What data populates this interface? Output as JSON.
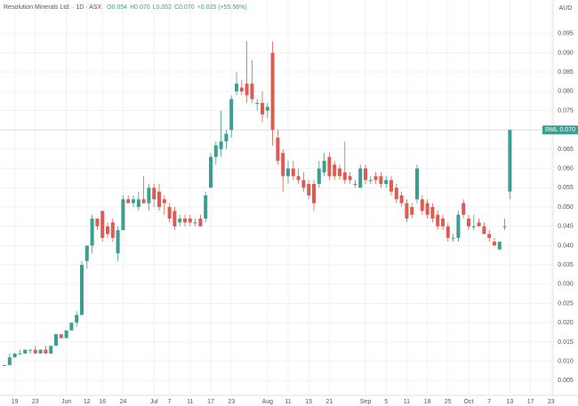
{
  "chart_data": {
    "type": "candlestick",
    "title": "Resolution Minerals Ltd. · 1D · ASX",
    "legend_values": [
      "O0.054",
      "H0.070",
      "L0.052",
      "C0.070",
      "+0.025 (+55.56%)"
    ],
    "currency": "AUD",
    "price_tag": {
      "name": "RML",
      "value": 0.07,
      "label": "0.070"
    },
    "up_color": "#3b9e8f",
    "down_color": "#df5b52",
    "grid": true,
    "ylim": [
      0,
      0.1037
    ],
    "yticks": [
      0.005,
      {
        "value": 0.01,
        "label": "0.010"
      },
      0.015,
      {
        "value": 0.02,
        "label": "0.020"
      },
      0.025,
      {
        "value": 0.03,
        "label": "0.030"
      },
      0.035,
      {
        "value": 0.04,
        "label": "0.040"
      },
      0.045,
      {
        "value": 0.05,
        "label": "0.050"
      },
      0.055,
      {
        "value": 0.06,
        "label": "0.060"
      },
      0.065,
      {
        "value": 0.07,
        "label": "0.070"
      },
      0.075,
      {
        "value": 0.08,
        "label": "0.080"
      },
      0.085,
      {
        "value": 0.09,
        "label": "0.090"
      },
      0.095
    ],
    "categories": [
      null,
      null,
      "19",
      null,
      null,
      null,
      "23",
      null,
      null,
      null,
      null,
      null,
      "Jun",
      null,
      null,
      null,
      "12",
      null,
      null,
      "16",
      null,
      null,
      null,
      "24",
      null,
      null,
      null,
      null,
      null,
      "Jul",
      null,
      null,
      "7",
      null,
      null,
      null,
      "11",
      null,
      null,
      null,
      "17",
      null,
      null,
      null,
      "23",
      null,
      null,
      null,
      null,
      null,
      null,
      "Aug",
      null,
      null,
      null,
      "11",
      null,
      null,
      null,
      "15",
      null,
      null,
      null,
      "21",
      null,
      null,
      null,
      null,
      null,
      null,
      "Sep",
      null,
      null,
      null,
      "5",
      null,
      null,
      null,
      "11",
      null,
      null,
      null,
      "18",
      null,
      null,
      null,
      "25",
      null,
      null,
      null,
      "Oct",
      null,
      null,
      null,
      "7",
      null,
      null,
      null,
      "13",
      null,
      null,
      null,
      "17",
      null,
      null,
      null,
      "23"
    ],
    "open": [
      0.009,
      0.009,
      0.011,
      0.012,
      0.012,
      0.013,
      0.013,
      0.012,
      0.013,
      0.012,
      0.014,
      0.017,
      0.016,
      0.018,
      0.02,
      0.022,
      0.036,
      0.04,
      0.047,
      0.049,
      0.045,
      0.046,
      0.038,
      0.044,
      0.052,
      0.051,
      0.05,
      0.052,
      0.051,
      0.055,
      0.054,
      0.052,
      0.05,
      0.049,
      0.046,
      0.047,
      0.047,
      0.046,
      0.047,
      0.047,
      0.055,
      0.063,
      0.065,
      0.067,
      0.07,
      0.08,
      0.081,
      0.082,
      0.082,
      0.077,
      0.077,
      0.075,
      0.09,
      0.068,
      0.064,
      0.058,
      0.06,
      0.058,
      0.057,
      0.056,
      0.056,
      0.056,
      0.059,
      0.063,
      0.061,
      0.06,
      0.059,
      0.058,
      0.056,
      0.055,
      0.06,
      0.057,
      0.058,
      0.058,
      0.056,
      0.057,
      0.055,
      0.053,
      0.051,
      0.05,
      0.052,
      0.052,
      0.051,
      0.05,
      0.048,
      0.047,
      0.045,
      0.042,
      0.042,
      0.051,
      0.047,
      0.045,
      0.046,
      0.045,
      0.043,
      0.041,
      0.039,
      0.045,
      0.054,
      null,
      null,
      null,
      null,
      null,
      null,
      null,
      null
    ],
    "high": [
      0.009,
      0.012,
      0.012,
      0.013,
      0.013,
      0.013,
      0.014,
      0.013,
      0.014,
      0.014,
      0.017,
      0.017,
      0.018,
      0.02,
      0.023,
      0.036,
      0.04,
      0.048,
      0.047,
      0.049,
      0.046,
      0.047,
      0.045,
      0.053,
      0.053,
      0.053,
      0.054,
      0.058,
      0.056,
      0.056,
      0.056,
      0.053,
      0.051,
      0.05,
      0.048,
      0.048,
      0.048,
      0.047,
      0.048,
      0.054,
      0.064,
      0.067,
      0.075,
      0.07,
      0.079,
      0.085,
      0.083,
      0.093,
      0.088,
      0.078,
      0.08,
      0.077,
      0.093,
      0.07,
      0.065,
      0.062,
      0.062,
      0.06,
      0.059,
      0.057,
      0.057,
      0.062,
      0.064,
      0.064,
      0.062,
      0.061,
      0.067,
      0.059,
      0.057,
      0.061,
      0.061,
      0.058,
      0.059,
      0.059,
      0.058,
      0.058,
      0.056,
      0.054,
      0.052,
      0.051,
      0.061,
      0.053,
      0.052,
      0.051,
      0.049,
      0.048,
      0.046,
      0.043,
      0.049,
      0.052,
      0.048,
      0.048,
      0.047,
      0.046,
      0.044,
      0.042,
      0.041,
      0.047,
      0.07,
      null,
      null,
      null,
      null,
      null,
      null,
      null,
      null
    ],
    "low": [
      0.009,
      0.009,
      0.011,
      0.012,
      0.012,
      0.012,
      0.012,
      0.012,
      0.012,
      0.012,
      0.014,
      0.016,
      0.016,
      0.018,
      0.019,
      0.022,
      0.034,
      0.038,
      0.044,
      0.041,
      0.042,
      0.041,
      0.036,
      0.044,
      0.051,
      0.05,
      0.049,
      0.051,
      0.049,
      0.05,
      0.049,
      0.048,
      0.046,
      0.044,
      0.045,
      0.045,
      0.045,
      0.045,
      0.045,
      0.046,
      0.055,
      0.061,
      0.063,
      0.065,
      0.068,
      0.079,
      0.079,
      0.077,
      0.077,
      0.075,
      0.072,
      0.073,
      0.066,
      0.061,
      0.054,
      0.056,
      0.057,
      0.056,
      0.054,
      0.052,
      0.049,
      0.055,
      0.058,
      0.057,
      0.057,
      0.057,
      0.056,
      0.056,
      0.055,
      0.055,
      0.056,
      0.056,
      0.056,
      0.055,
      0.055,
      0.053,
      0.051,
      0.05,
      0.046,
      0.047,
      0.051,
      0.048,
      0.047,
      0.046,
      0.044,
      0.044,
      0.041,
      0.041,
      0.041,
      0.047,
      0.044,
      0.044,
      0.045,
      0.043,
      0.041,
      0.04,
      0.039,
      0.044,
      0.052,
      null,
      null,
      null,
      null,
      null,
      null,
      null,
      null
    ],
    "close": [
      0.009,
      0.011,
      0.012,
      0.012,
      0.013,
      0.013,
      0.012,
      0.013,
      0.012,
      0.014,
      0.017,
      0.016,
      0.018,
      0.02,
      0.022,
      0.035,
      0.04,
      0.047,
      0.045,
      0.042,
      0.043,
      0.042,
      0.044,
      0.052,
      0.051,
      0.052,
      0.052,
      0.051,
      0.055,
      0.052,
      0.05,
      0.051,
      0.047,
      0.045,
      0.047,
      0.046,
      0.046,
      0.046,
      0.045,
      0.053,
      0.063,
      0.066,
      0.067,
      0.069,
      0.078,
      0.082,
      0.08,
      0.079,
      0.078,
      0.077,
      0.074,
      0.076,
      0.07,
      0.062,
      0.058,
      0.06,
      0.058,
      0.057,
      0.055,
      0.053,
      0.051,
      0.06,
      0.062,
      0.058,
      0.058,
      0.058,
      0.057,
      0.057,
      0.056,
      0.06,
      0.057,
      0.057,
      0.057,
      0.056,
      0.057,
      0.054,
      0.052,
      0.051,
      0.047,
      0.048,
      0.06,
      0.049,
      0.048,
      0.047,
      0.045,
      0.045,
      0.042,
      0.042,
      0.048,
      0.048,
      0.045,
      0.045,
      0.045,
      0.043,
      0.042,
      0.04,
      0.041,
      0.045,
      0.07,
      null,
      null,
      null,
      null,
      null,
      null,
      null,
      null
    ]
  }
}
